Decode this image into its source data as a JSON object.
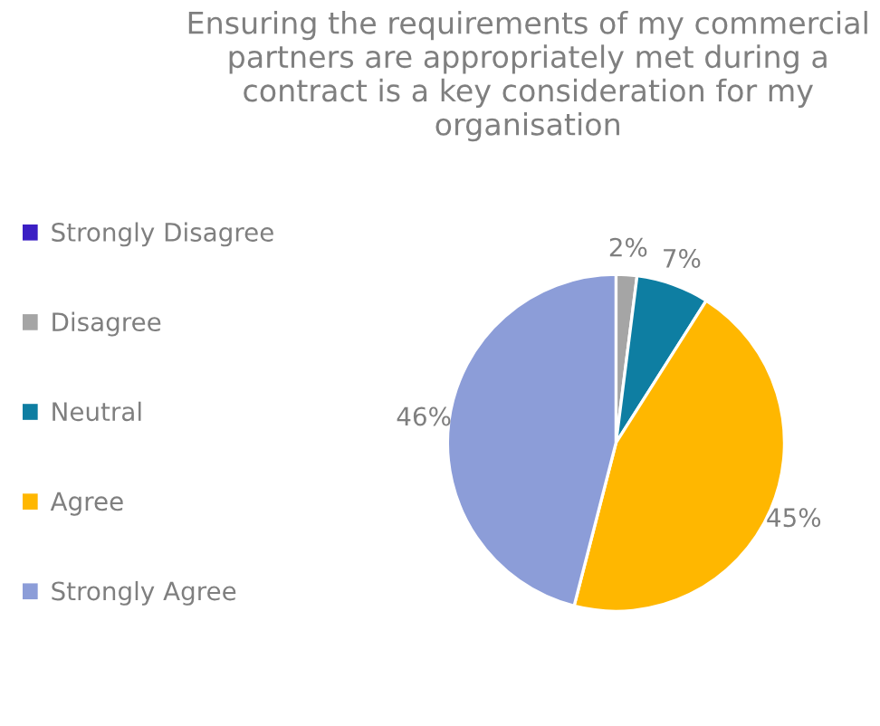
{
  "chart_data": {
    "type": "pie",
    "title": "Ensuring the requirements of my commercial partners are appropriately met during a contract is a key consideration for my organisation",
    "categories": [
      "Strongly Disagree",
      "Disagree",
      "Neutral",
      "Agree",
      "Strongly Agree"
    ],
    "values": [
      0,
      2,
      7,
      45,
      46
    ],
    "colors": [
      "#3b1fc4",
      "#a5a5a5",
      "#0e7ea2",
      "#ffb700",
      "#8c9dd8"
    ],
    "value_labels": [
      null,
      "2%",
      "7%",
      "45%",
      "46%"
    ],
    "legend": "left"
  }
}
